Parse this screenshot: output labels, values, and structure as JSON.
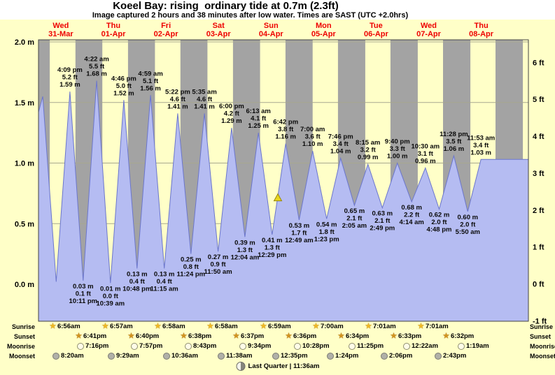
{
  "colors": {
    "day_band": "#ffffc8",
    "night_band": "#a3a3a3",
    "tide_fill": "#b5bcf2",
    "tide_stroke": "#6b76cc",
    "day_label": "#ee0000",
    "grid": "#a8a890",
    "marker": "#e8d51f"
  },
  "chart_data": {
    "type": "area",
    "title": "Koeel Bay: rising  ordinary tide at 0.7m (2.3ft)",
    "subtitle": "Image captured 2 hours and 38 minutes after low water. Times are SAST (UTC +2.0hrs)",
    "y_ticks_m": [
      "2.0 m",
      "1.5 m",
      "1.0 m",
      "0.5 m",
      "0.0 m"
    ],
    "y_tick_values_m": [
      2.0,
      1.5,
      1.0,
      0.5,
      0.0
    ],
    "y_ticks_ft": [
      "6 ft",
      "5 ft",
      "4 ft",
      "3 ft",
      "2 ft",
      "1 ft",
      "0 ft",
      "-1 ft"
    ],
    "y_tick_values_ft": [
      6,
      5,
      4,
      3,
      2,
      1,
      0,
      -1
    ],
    "ylim_m": [
      -0.305,
      2.02
    ],
    "days": [
      {
        "name": "Wed",
        "date": "31-Mar"
      },
      {
        "name": "Thu",
        "date": "01-Apr"
      },
      {
        "name": "Fri",
        "date": "02-Apr"
      },
      {
        "name": "Sat",
        "date": "03-Apr"
      },
      {
        "name": "Sun",
        "date": "04-Apr"
      },
      {
        "name": "Mon",
        "date": "05-Apr"
      },
      {
        "name": "Tue",
        "date": "06-Apr"
      },
      {
        "name": "Wed",
        "date": "07-Apr"
      },
      {
        "name": "Thu",
        "date": "08-Apr"
      }
    ],
    "tides": [
      {
        "type": "high",
        "t": 16.15,
        "m": 1.59,
        "labels": [
          "4:09 pm",
          "5.2 ft",
          "1.59 m"
        ]
      },
      {
        "type": "low",
        "t": 22.18,
        "m": 0.03,
        "labels": [
          "0.03 m",
          "0.1 ft",
          "10:11 pm"
        ]
      },
      {
        "type": "high",
        "t": 28.37,
        "m": 1.68,
        "labels": [
          "4:22 am",
          "5.5 ft",
          "1.68 m"
        ]
      },
      {
        "type": "low",
        "t": 34.65,
        "m": 0.01,
        "labels": [
          "0.01 m",
          "0.0 ft",
          "10:39 am"
        ]
      },
      {
        "type": "high",
        "t": 40.77,
        "m": 1.52,
        "labels": [
          "4:46 pm",
          "5.0 ft",
          "1.52 m"
        ]
      },
      {
        "type": "low",
        "t": 46.8,
        "m": 0.13,
        "labels": [
          "0.13 m",
          "0.4 ft",
          "10:48 pm"
        ]
      },
      {
        "type": "high",
        "t": 52.98,
        "m": 1.56,
        "labels": [
          "4:59 am",
          "5.1 ft",
          "1.56 m"
        ]
      },
      {
        "type": "low",
        "t": 59.25,
        "m": 0.13,
        "labels": [
          "0.13 m",
          "0.4 ft",
          "11:15 am"
        ]
      },
      {
        "type": "high",
        "t": 65.37,
        "m": 1.41,
        "labels": [
          "5:22 pm",
          "4.6 ft",
          "1.41 m"
        ]
      },
      {
        "type": "low",
        "t": 71.4,
        "m": 0.25,
        "labels": [
          "0.25 m",
          "0.8 ft",
          "11:24 pm"
        ]
      },
      {
        "type": "high",
        "t": 77.58,
        "m": 1.41,
        "labels": [
          "5:35 am",
          "4.6 ft",
          "1.41 m"
        ]
      },
      {
        "type": "low",
        "t": 83.83,
        "m": 0.27,
        "labels": [
          "0.27 m",
          "0.9 ft",
          "11:50 am"
        ]
      },
      {
        "type": "high",
        "t": 90.0,
        "m": 1.29,
        "labels": [
          "6:00 pm",
          "4.2 ft",
          "1.29 m"
        ]
      },
      {
        "type": "low",
        "t": 96.07,
        "m": 0.39,
        "labels": [
          "0.39 m",
          "1.3 ft",
          "12:04 am"
        ]
      },
      {
        "type": "high",
        "t": 102.22,
        "m": 1.25,
        "labels": [
          "6:13 am",
          "4.1 ft",
          "1.25 m"
        ]
      },
      {
        "type": "low",
        "t": 108.48,
        "m": 0.41,
        "labels": [
          "0.41 m",
          "1.3 ft",
          "12:29 pm"
        ]
      },
      {
        "type": "high",
        "t": 114.7,
        "m": 1.16,
        "labels": [
          "6:42 pm",
          "3.8 ft",
          "1.16 m"
        ]
      },
      {
        "type": "low",
        "t": 120.82,
        "m": 0.53,
        "labels": [
          "0.53 m",
          "1.7 ft",
          "12:49 am"
        ]
      },
      {
        "type": "high",
        "t": 127.0,
        "m": 1.1,
        "labels": [
          "7:00 am",
          "3.6 ft",
          "1.10 m"
        ]
      },
      {
        "type": "low",
        "t": 133.38,
        "m": 0.54,
        "labels": [
          "0.54 m",
          "1.8 ft",
          "1:23 pm"
        ]
      },
      {
        "type": "high",
        "t": 139.77,
        "m": 1.04,
        "labels": [
          "7:46 pm",
          "3.4 ft",
          "1.04 m"
        ]
      },
      {
        "type": "low",
        "t": 146.08,
        "m": 0.65,
        "labels": [
          "0.65 m",
          "2.1 ft",
          "2:05 am"
        ]
      },
      {
        "type": "high",
        "t": 152.25,
        "m": 0.99,
        "labels": [
          "8:15 am",
          "3.2 ft",
          "0.99 m"
        ]
      },
      {
        "type": "low",
        "t": 158.82,
        "m": 0.63,
        "labels": [
          "0.63 m",
          "2.1 ft",
          "2:49 pm"
        ]
      },
      {
        "type": "high",
        "t": 165.67,
        "m": 1.0,
        "labels": [
          "9:40 pm",
          "3.3 ft",
          "1.00 m"
        ]
      },
      {
        "type": "low",
        "t": 172.23,
        "m": 0.68,
        "labels": [
          "0.68 m",
          "2.2 ft",
          "4:14 am"
        ]
      },
      {
        "type": "high",
        "t": 178.5,
        "m": 0.96,
        "labels": [
          "10:30 am",
          "3.1 ft",
          "0.96 m"
        ]
      },
      {
        "type": "low",
        "t": 184.8,
        "m": 0.62,
        "labels": [
          "0.62 m",
          "2.0 ft",
          "4:48 pm"
        ]
      },
      {
        "type": "high",
        "t": 191.47,
        "m": 1.06,
        "labels": [
          "11:28 pm",
          "3.5 ft",
          "1.06 m"
        ]
      },
      {
        "type": "low",
        "t": 197.83,
        "m": 0.6,
        "labels": [
          "0.60 m",
          "2.0 ft",
          "5:50 am"
        ]
      },
      {
        "type": "high",
        "t": 203.88,
        "m": 1.03,
        "labels": [
          "11:53 am",
          "3.4 ft",
          "1.03 m"
        ]
      }
    ],
    "lead_in": [
      {
        "t": 1.8,
        "m": 1.42
      },
      {
        "t": 3.75,
        "m": 1.55
      },
      {
        "t": 9.9,
        "m": 0.02
      }
    ],
    "marker": {
      "t": 111.12,
      "m": 0.7,
      "shape": "triangle-up"
    }
  },
  "astro": {
    "rows": [
      {
        "label": "Sunrise",
        "icon": "sunrise-star-icon",
        "entries": [
          {
            "day": 0,
            "time": "6:56am"
          },
          {
            "day": 1,
            "time": "6:57am"
          },
          {
            "day": 2,
            "time": "6:58am"
          },
          {
            "day": 3,
            "time": "6:58am"
          },
          {
            "day": 4,
            "time": "6:59am"
          },
          {
            "day": 5,
            "time": "7:00am"
          },
          {
            "day": 6,
            "time": "7:01am"
          },
          {
            "day": 7,
            "time": "7:01am"
          }
        ]
      },
      {
        "label": "Sunset",
        "icon": "sunset-star-icon",
        "entries": [
          {
            "day": 0,
            "time": "6:41pm"
          },
          {
            "day": 1,
            "time": "6:40pm"
          },
          {
            "day": 2,
            "time": "6:38pm"
          },
          {
            "day": 3,
            "time": "6:37pm"
          },
          {
            "day": 4,
            "time": "6:36pm"
          },
          {
            "day": 5,
            "time": "6:34pm"
          },
          {
            "day": 6,
            "time": "6:33pm"
          },
          {
            "day": 7,
            "time": "6:32pm"
          }
        ]
      },
      {
        "label": "Moonrise",
        "icon": "moonrise-icon",
        "entries": [
          {
            "day": 0,
            "time": "7:16pm"
          },
          {
            "day": 1,
            "time": "7:57pm"
          },
          {
            "day": 2,
            "time": "8:43pm"
          },
          {
            "day": 3,
            "time": "9:34pm"
          },
          {
            "day": 4,
            "time": "10:28pm"
          },
          {
            "day": 5,
            "time": "11:25pm"
          },
          {
            "day": 7,
            "time": "12:22am"
          },
          {
            "day": 8,
            "time": "1:19am"
          }
        ]
      },
      {
        "label": "Moonset",
        "icon": "moonset-icon",
        "entries": [
          {
            "day": 0,
            "time": "8:20am"
          },
          {
            "day": 1,
            "time": "9:29am"
          },
          {
            "day": 2,
            "time": "10:36am"
          },
          {
            "day": 3,
            "time": "11:38am"
          },
          {
            "day": 4,
            "time": "12:35pm"
          },
          {
            "day": 5,
            "time": "1:24pm"
          },
          {
            "day": 6,
            "time": "2:06pm"
          },
          {
            "day": 7,
            "time": "2:43pm"
          }
        ]
      }
    ],
    "moon_phase": {
      "icon": "last-quarter-moon-icon",
      "label": "Last Quarter | 11:36am"
    }
  }
}
